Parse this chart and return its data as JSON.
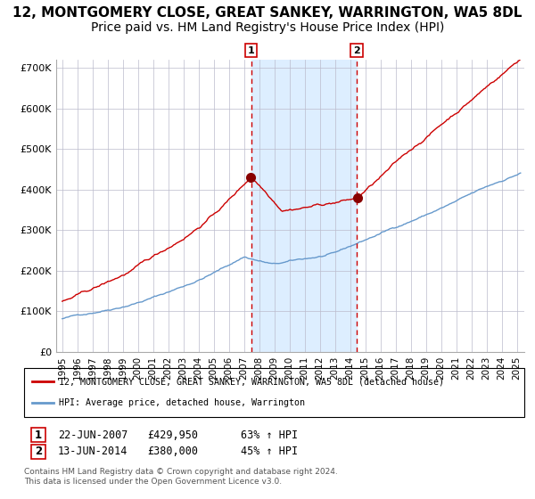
{
  "title": "12, MONTGOMERY CLOSE, GREAT SANKEY, WARRINGTON, WA5 8DL",
  "subtitle": "Price paid vs. HM Land Registry's House Price Index (HPI)",
  "ylim": [
    0,
    720000
  ],
  "yticks": [
    0,
    100000,
    200000,
    300000,
    400000,
    500000,
    600000,
    700000
  ],
  "ytick_labels": [
    "£0",
    "£100K",
    "£200K",
    "£300K",
    "£400K",
    "£500K",
    "£600K",
    "£700K"
  ],
  "sale1_date": 2007.47,
  "sale1_price": 429950,
  "sale2_date": 2014.44,
  "sale2_price": 380000,
  "legend_line1": "12, MONTGOMERY CLOSE, GREAT SANKEY, WARRINGTON, WA5 8DL (detached house)",
  "legend_line2": "HPI: Average price, detached house, Warrington",
  "ann1_date": "22-JUN-2007",
  "ann1_price": "£429,950",
  "ann1_hpi": "63% ↑ HPI",
  "ann2_date": "13-JUN-2014",
  "ann2_price": "£380,000",
  "ann2_hpi": "45% ↑ HPI",
  "footnote": "Contains HM Land Registry data © Crown copyright and database right 2024.\nThis data is licensed under the Open Government Licence v3.0.",
  "red_color": "#cc0000",
  "blue_color": "#6699cc",
  "shade_color": "#ddeeff",
  "grid_color": "#bbbbcc",
  "title_fontsize": 11,
  "subtitle_fontsize": 10
}
